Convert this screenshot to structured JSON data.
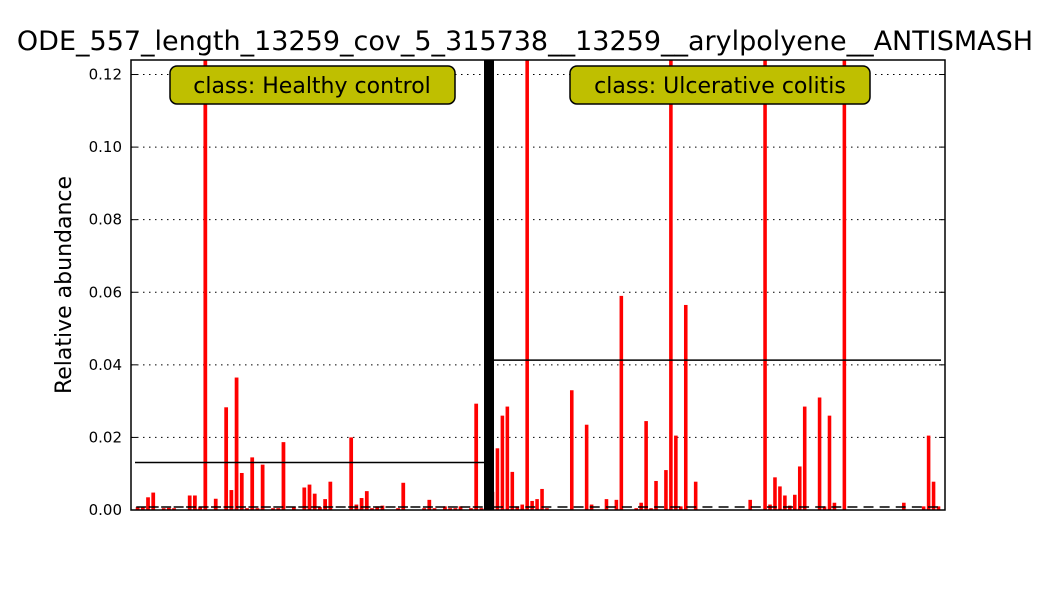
{
  "chart_data": {
    "type": "bar",
    "title": "ODE_557_length_13259_cov_5_315738__13259__arylpolyene__ANTISMASH",
    "ylabel": "Relative abundance",
    "xlabel": "",
    "ylim": [
      0,
      0.124
    ],
    "yticks": [
      "0.00",
      "0.02",
      "0.04",
      "0.06",
      "0.08",
      "0.10",
      "0.12"
    ],
    "ytick_values": [
      0,
      0.02,
      0.04,
      0.06,
      0.08,
      0.1,
      0.12
    ],
    "grid": true,
    "bar_color": "#ff0000",
    "label_box_color": "#bfbf00",
    "groups": [
      {
        "label": "class: Healthy control",
        "mean": 0.0131,
        "values": [
          0.0008,
          0.0008,
          0.0035,
          0.0048,
          0.0,
          0.0005,
          0.0006,
          0.0005,
          0.0,
          0.0,
          0.004,
          0.004,
          0.0008,
          0.124,
          0.0,
          0.0031,
          0.0,
          0.0283,
          0.0055,
          0.0365,
          0.0102,
          0.0005,
          0.0145,
          0.0005,
          0.0125,
          0.0,
          0.0005,
          0.0005,
          0.0187,
          0.0,
          0.0008,
          0.0,
          0.0062,
          0.007,
          0.0045,
          0.0008,
          0.003,
          0.0078,
          0.0,
          0.0,
          0.0,
          0.02,
          0.0015,
          0.0033,
          0.0052,
          0.0005,
          0.001,
          0.0012,
          0.0,
          0.0,
          0.0005,
          0.0075,
          0.0,
          0.0,
          0.0,
          0.0005,
          0.0028,
          0.0005,
          0.0,
          0.001,
          0.0005,
          0.0005,
          0.001,
          0.0,
          0.0005,
          0.0293,
          0.0005
        ]
      },
      {
        "label": "class: Ulcerative colitis",
        "mean": 0.0413,
        "values": [
          0.005,
          0.017,
          0.026,
          0.0285,
          0.0105,
          0.001,
          0.0015,
          0.124,
          0.0025,
          0.003,
          0.0058,
          0.0005,
          0.0,
          0.0,
          0.0,
          0.0,
          0.033,
          0.0,
          0.0,
          0.0235,
          0.0015,
          0.0,
          0.0,
          0.003,
          0.0,
          0.0028,
          0.059,
          0.0,
          0.0,
          0.0005,
          0.002,
          0.0245,
          0.0005,
          0.008,
          0.0,
          0.011,
          0.124,
          0.0205,
          0.001,
          0.0565,
          0.0,
          0.0078,
          0.0,
          0.0,
          0.0,
          0.0,
          0.0,
          0.0,
          0.0,
          0.0,
          0.0,
          0.0,
          0.0028,
          0.0,
          0.0,
          0.124,
          0.0015,
          0.009,
          0.0065,
          0.004,
          0.0012,
          0.0042,
          0.012,
          0.0285,
          0.0,
          0.0,
          0.031,
          0.001,
          0.026,
          0.002,
          0.0,
          0.124,
          0.0,
          0.0,
          0.0,
          0.0,
          0.0,
          0.0,
          0.0,
          0.0,
          0.0,
          0.0,
          0.0,
          0.002,
          0.0,
          0.0,
          0.0,
          0.001,
          0.0205,
          0.0078,
          0.001
        ]
      }
    ]
  }
}
